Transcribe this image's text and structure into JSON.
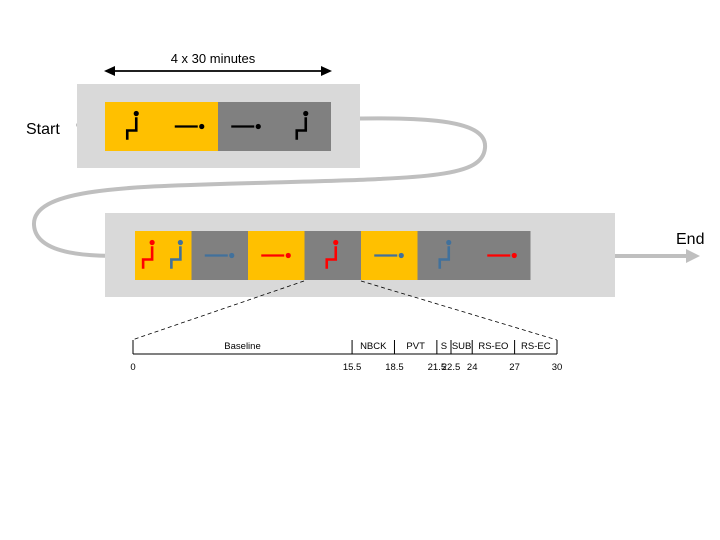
{
  "top_label": "4 x 30 minutes",
  "start_label": "Start",
  "end_label": "End",
  "colors": {
    "yellow": "#FFC000",
    "gray": "#808080",
    "panel": "#D9D9D9",
    "flow": "#BFBFBF",
    "black": "#000000",
    "red": "#FF0000",
    "blue": "#41719C"
  },
  "row1": [
    {
      "bg": "yellow",
      "icons": [
        {
          "type": "sit-icon",
          "color": "black"
        },
        {
          "type": "lie-icon",
          "color": "black"
        }
      ]
    },
    {
      "bg": "gray",
      "icons": [
        {
          "type": "lie-icon",
          "color": "black"
        },
        {
          "type": "sit-icon",
          "color": "black"
        }
      ]
    }
  ],
  "row2": [
    {
      "bg": "yellow",
      "icons": [
        {
          "type": "sit-icon",
          "color": "red"
        },
        {
          "type": "sit-icon",
          "color": "blue"
        }
      ]
    },
    {
      "bg": "gray",
      "icons": [
        {
          "type": "lie-icon",
          "color": "blue"
        }
      ]
    },
    {
      "bg": "yellow",
      "icons": [
        {
          "type": "lie-icon",
          "color": "red"
        }
      ]
    },
    {
      "bg": "gray",
      "icons": [
        {
          "type": "sit-icon",
          "color": "red"
        }
      ]
    },
    {
      "bg": "yellow",
      "icons": [
        {
          "type": "lie-icon",
          "color": "blue"
        }
      ]
    },
    {
      "bg": "gray",
      "icons": [
        {
          "type": "sit-icon",
          "color": "blue"
        }
      ]
    },
    {
      "bg": "gray",
      "icons": [
        {
          "type": "lie-icon",
          "color": "red"
        }
      ]
    }
  ],
  "timeline": {
    "start": 0,
    "end": 30,
    "segments": [
      {
        "label": "Baseline",
        "from": 0,
        "to": 15.5
      },
      {
        "label": "NBCK",
        "from": 15.5,
        "to": 18.5
      },
      {
        "label": "PVT",
        "from": 18.5,
        "to": 21.5
      },
      {
        "label": "S",
        "from": 21.5,
        "to": 22.5
      },
      {
        "label": "SUB",
        "from": 22.5,
        "to": 24
      },
      {
        "label": "RS-EO",
        "from": 24,
        "to": 27
      },
      {
        "label": "RS-EC",
        "from": 27,
        "to": 30
      }
    ],
    "ticks": [
      "0",
      "15.5",
      "18.5",
      "21.5",
      "22.5",
      "24",
      "27",
      "30"
    ]
  }
}
